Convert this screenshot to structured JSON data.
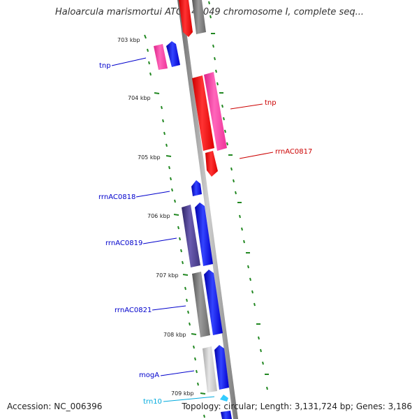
{
  "title": "Haloarcula marismortui ATCC 43049 chromosome I, complete seq...",
  "accession": "Accession: NC_006396",
  "topology": "Topology: circular; Length: 3,131,724 bp; Genes: 3,186",
  "ticks": [
    "703 kbp",
    "704 kbp",
    "705 kbp",
    "706 kbp",
    "707 kbp",
    "708 kbp",
    "709 kbp"
  ],
  "gene_labels": [
    {
      "text": "tnp",
      "color": "#0000cc"
    },
    {
      "text": "tnp",
      "color": "#cc0000"
    },
    {
      "text": "rrnAC0817",
      "color": "#cc0000"
    },
    {
      "text": "rrnAC0818",
      "color": "#0000cc"
    },
    {
      "text": "rrnAC0819",
      "color": "#0000cc"
    },
    {
      "text": "rrnAC0821",
      "color": "#0000cc"
    },
    {
      "text": "mogA",
      "color": "#0000cc"
    },
    {
      "text": "trn10",
      "color": "#00aadd"
    }
  ],
  "colors": {
    "forward": "#0000ff",
    "reverse": "#ff0000",
    "pink": "#ff3399",
    "grey": "#808080",
    "purple": "#4b3f8a",
    "light_grey": "#c8c8c8",
    "cyan": "#33ccff",
    "dots": "#228822",
    "backbone": "#888888"
  }
}
